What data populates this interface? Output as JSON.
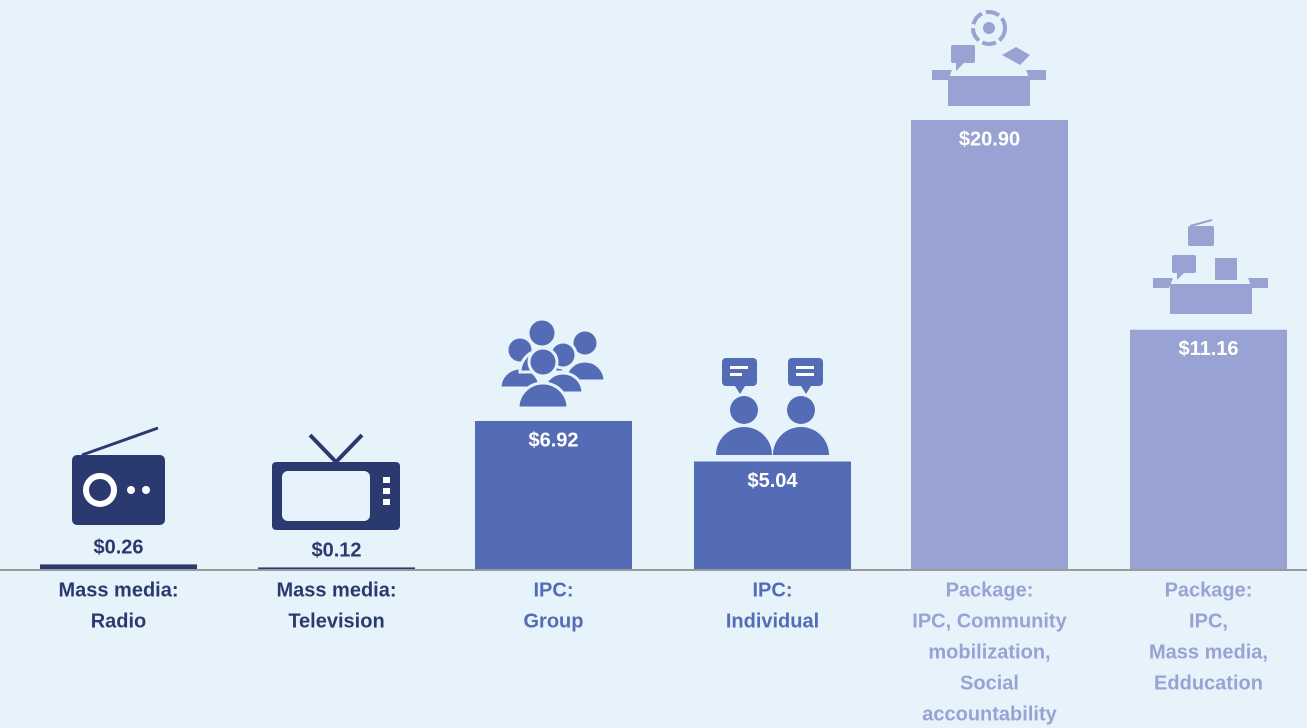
{
  "chart_data": {
    "type": "bar",
    "categories": [
      [
        "Mass media:",
        "Radio"
      ],
      [
        "Mass media:",
        "Television"
      ],
      [
        "IPC:",
        "Group"
      ],
      [
        "IPC:",
        "Individual"
      ],
      [
        "Package:",
        "IPC, Community",
        "mobilization,",
        "Social",
        "accountability"
      ],
      [
        "Package:",
        "IPC,",
        "Mass media,",
        "Edducation"
      ]
    ],
    "values": [
      0.26,
      0.12,
      6.92,
      5.04,
      20.9,
      11.16
    ],
    "value_labels": [
      "$0.26",
      "$0.12",
      "$6.92",
      "$5.04",
      "$20.90",
      "$11.16"
    ],
    "colors": [
      "#2b3a6e",
      "#2b3a6e",
      "#546bb5",
      "#546bb5",
      "#99a3d3",
      "#99a3d3"
    ],
    "ylim": [
      0,
      20.9
    ]
  }
}
